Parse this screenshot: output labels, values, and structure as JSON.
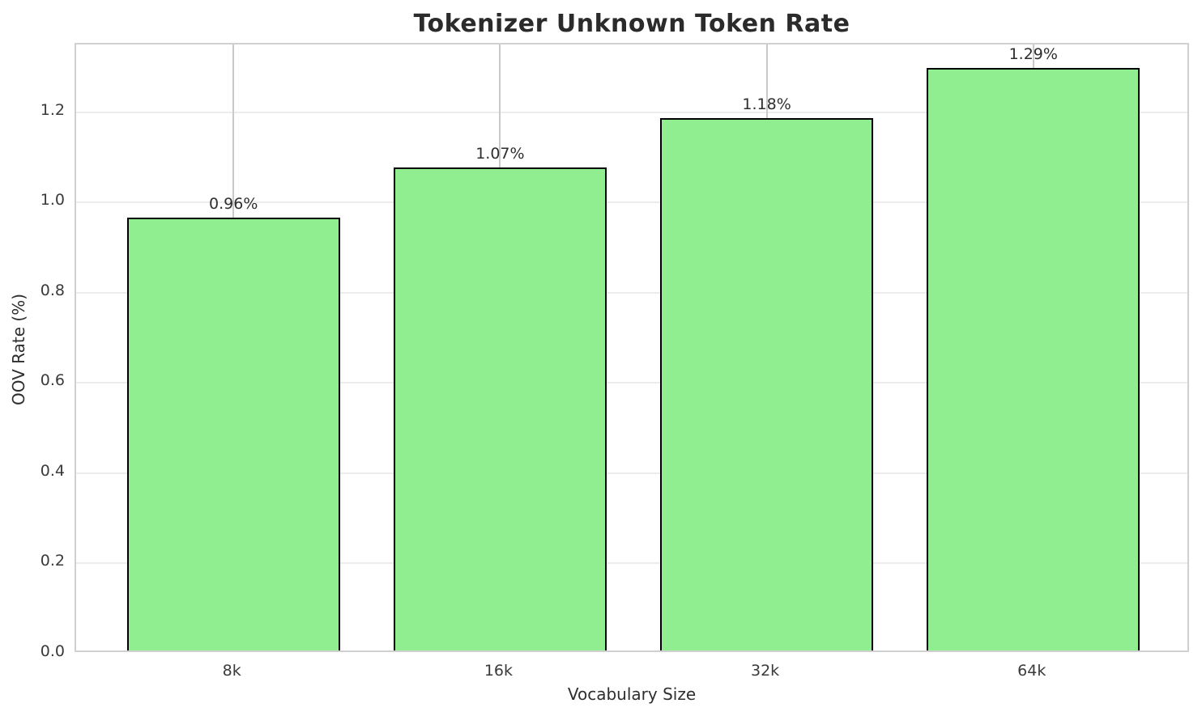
{
  "chart_data": {
    "type": "bar",
    "title": "Tokenizer Unknown Token Rate",
    "xlabel": "Vocabulary Size",
    "ylabel": "OOV Rate (%)",
    "categories": [
      "8k",
      "16k",
      "32k",
      "64k"
    ],
    "values": [
      0.96,
      1.07,
      1.18,
      1.29
    ],
    "bar_labels": [
      "0.96%",
      "1.07%",
      "1.18%",
      "1.29%"
    ],
    "ylim": [
      0,
      1.35
    ],
    "ytick_values": [
      0,
      0.2,
      0.4,
      0.6,
      0.8,
      1.0,
      1.2
    ],
    "ytick_labels": [
      "0.0",
      "0.2",
      "0.4",
      "0.6",
      "0.8",
      "1.0",
      "1.2"
    ],
    "grid": "on",
    "legend": "none",
    "colors": {
      "bar_fill": "#90EE90",
      "bar_edge": "#000000",
      "grid_horizontal": "#ececec",
      "grid_vertical": "#c9c9c9",
      "spine": "#d0d0d0",
      "title_text": "#2b2b2b",
      "tick_text": "#3a3a3a"
    }
  }
}
